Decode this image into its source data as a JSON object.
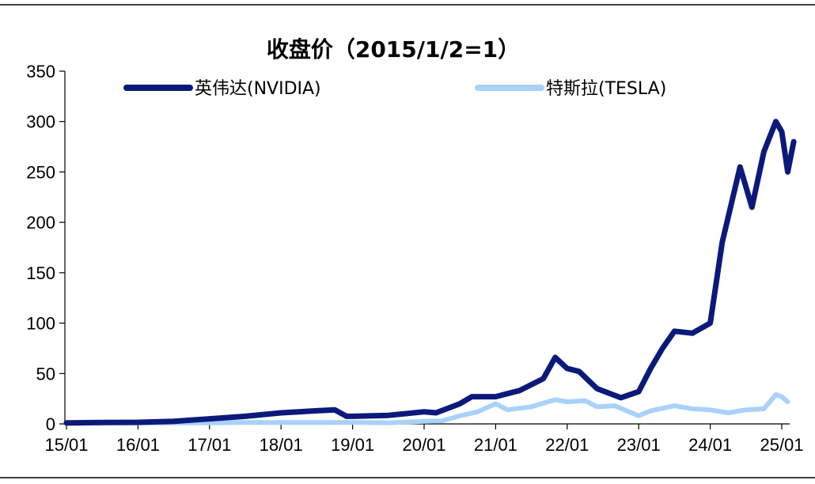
{
  "chart_data": {
    "type": "line",
    "title": "收盘价（2015/1/2=1）",
    "xlabel": "",
    "ylabel": "",
    "x_tick_labels": [
      "15/01",
      "16/01",
      "17/01",
      "18/01",
      "19/01",
      "20/01",
      "21/01",
      "22/01",
      "23/01",
      "24/01",
      "25/01"
    ],
    "y_tick_labels": [
      "0",
      "50",
      "100",
      "150",
      "200",
      "250",
      "300",
      "350"
    ],
    "ylim": [
      0,
      350
    ],
    "grid": false,
    "legend_position": "top",
    "series": [
      {
        "name": "英伟达(NVIDIA)",
        "color": "#0b1a7a",
        "points": [
          [
            "15/01",
            1
          ],
          [
            "15/07",
            1.3
          ],
          [
            "16/01",
            1.6
          ],
          [
            "16/07",
            2.6
          ],
          [
            "17/01",
            5
          ],
          [
            "17/07",
            7.5
          ],
          [
            "18/01",
            11
          ],
          [
            "18/07",
            13
          ],
          [
            "18/10",
            14
          ],
          [
            "18/12",
            7.5
          ],
          [
            "19/01",
            7.5
          ],
          [
            "19/07",
            8.5
          ],
          [
            "20/01",
            12
          ],
          [
            "20/03",
            11
          ],
          [
            "20/07",
            20
          ],
          [
            "20/09",
            27
          ],
          [
            "21/01",
            27
          ],
          [
            "21/05",
            33
          ],
          [
            "21/09",
            45
          ],
          [
            "21/11",
            66
          ],
          [
            "22/01",
            55
          ],
          [
            "22/03",
            52
          ],
          [
            "22/06",
            35
          ],
          [
            "22/10",
            26
          ],
          [
            "23/01",
            32
          ],
          [
            "23/03",
            55
          ],
          [
            "23/05",
            75
          ],
          [
            "23/07",
            92
          ],
          [
            "23/10",
            90
          ],
          [
            "24/01",
            100
          ],
          [
            "24/03",
            180
          ],
          [
            "24/06",
            255
          ],
          [
            "24/08",
            215
          ],
          [
            "24/10",
            270
          ],
          [
            "24/12",
            300
          ],
          [
            "25/01",
            290
          ],
          [
            "25/02",
            250
          ],
          [
            "25/03",
            280
          ]
        ]
      },
      {
        "name": "特斯拉(TESLA)",
        "color": "#a9d1fa",
        "points": [
          [
            "15/01",
            1
          ],
          [
            "15/07",
            1.2
          ],
          [
            "16/01",
            1
          ],
          [
            "16/07",
            1
          ],
          [
            "17/01",
            1.1
          ],
          [
            "17/07",
            1.5
          ],
          [
            "18/01",
            1.4
          ],
          [
            "18/07",
            1.4
          ],
          [
            "19/01",
            1.5
          ],
          [
            "19/07",
            1.1
          ],
          [
            "20/01",
            2.5
          ],
          [
            "20/04",
            3
          ],
          [
            "20/07",
            8
          ],
          [
            "20/10",
            12
          ],
          [
            "21/01",
            20
          ],
          [
            "21/03",
            14
          ],
          [
            "21/07",
            17
          ],
          [
            "21/11",
            24
          ],
          [
            "22/01",
            22
          ],
          [
            "22/04",
            23
          ],
          [
            "22/06",
            17
          ],
          [
            "22/09",
            18
          ],
          [
            "23/01",
            8
          ],
          [
            "23/03",
            13
          ],
          [
            "23/07",
            18
          ],
          [
            "23/10",
            15
          ],
          [
            "24/01",
            14
          ],
          [
            "24/04",
            11
          ],
          [
            "24/07",
            14
          ],
          [
            "24/10",
            15
          ],
          [
            "24/12",
            29
          ],
          [
            "25/01",
            27
          ],
          [
            "25/02",
            22
          ]
        ]
      }
    ]
  }
}
